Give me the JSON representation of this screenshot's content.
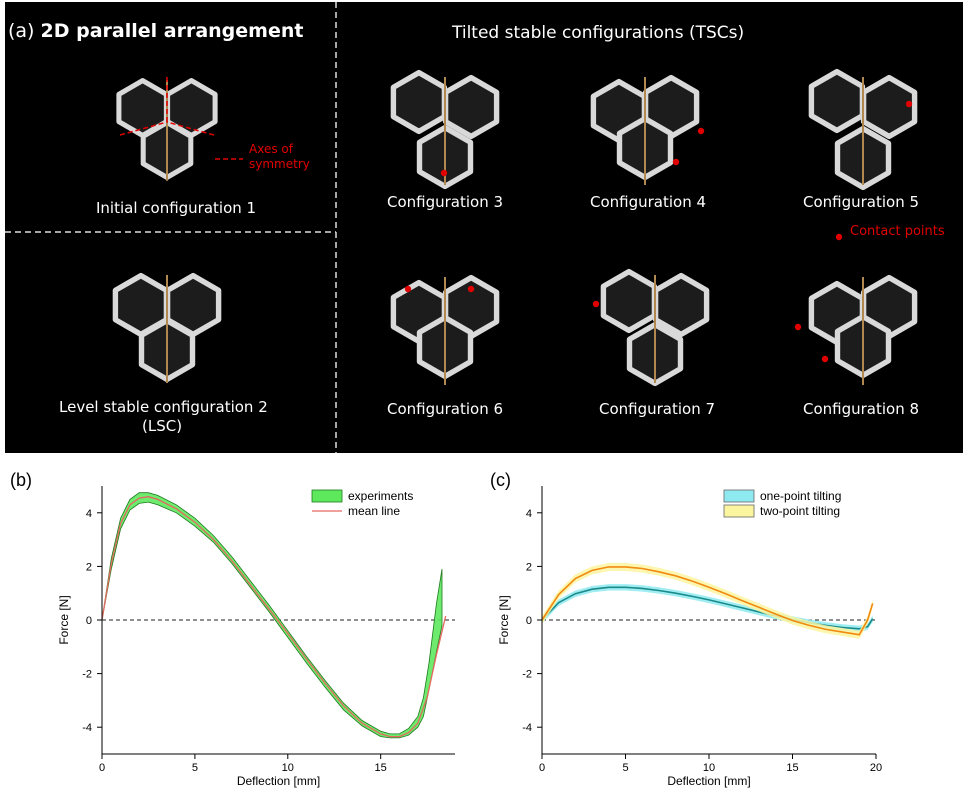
{
  "figure_a": {
    "panel_label": "(a)",
    "heading": "2D parallel arrangement",
    "right_heading": "Tilted stable configurations (TSCs)",
    "axes_label_line1": "Axes of",
    "axes_label_line2": "symmetry",
    "contact_label": "Contact points",
    "configs": [
      {
        "label": "Initial configuration 1"
      },
      {
        "label": "Level stable configuration 2",
        "label2": "(LSC)"
      },
      {
        "label": "Configuration 3"
      },
      {
        "label": "Configuration 4"
      },
      {
        "label": "Configuration 5"
      },
      {
        "label": "Configuration 6"
      },
      {
        "label": "Configuration 7"
      },
      {
        "label": "Configuration 8"
      }
    ],
    "colors": {
      "background": "#000000",
      "frame": "#d9d9d9",
      "accent": "#e10000"
    }
  },
  "chart_data": [
    {
      "panel_label": "(b)",
      "type": "line",
      "xlabel": "Deflection [mm]",
      "ylabel": "Force [N]",
      "xlim": [
        0,
        19
      ],
      "ylim": [
        -5,
        5
      ],
      "x_ticks": [
        "0",
        "5",
        "10",
        "15"
      ],
      "y_ticks": [
        "4",
        "2",
        "0",
        "-2",
        "-4"
      ],
      "series": [
        {
          "name": "experiments",
          "kind": "band",
          "color": "#5ee85e",
          "x": [
            0,
            0.5,
            1,
            1.5,
            2,
            2.5,
            3,
            4,
            5,
            6,
            7,
            8,
            9,
            10,
            11,
            12,
            13,
            14,
            15,
            15.5,
            16,
            16.5,
            17,
            17.3,
            17.6,
            18,
            18.3
          ],
          "upper": [
            0,
            2.3,
            3.8,
            4.5,
            4.75,
            4.75,
            4.65,
            4.3,
            3.8,
            3.15,
            2.35,
            1.45,
            0.55,
            -0.4,
            -1.35,
            -2.25,
            -3.1,
            -3.75,
            -4.15,
            -4.25,
            -4.25,
            -4.05,
            -3.6,
            -2.9,
            -1.6,
            0.6,
            1.9
          ],
          "lower": [
            0,
            1.9,
            3.4,
            4.1,
            4.35,
            4.4,
            4.3,
            4.0,
            3.5,
            2.9,
            2.1,
            1.2,
            0.3,
            -0.65,
            -1.6,
            -2.5,
            -3.35,
            -3.95,
            -4.35,
            -4.4,
            -4.4,
            -4.3,
            -4.0,
            -3.6,
            -2.6,
            -1.2,
            -0.2
          ]
        },
        {
          "name": "mean line",
          "kind": "line",
          "color": "#e46a5f",
          "x": [
            0,
            0.5,
            1,
            1.5,
            2,
            2.5,
            3,
            4,
            5,
            6,
            7,
            8,
            9,
            10,
            11,
            12,
            13,
            14,
            15,
            15.5,
            16,
            16.5,
            17,
            17.5,
            18,
            18.5
          ],
          "y": [
            0,
            2.1,
            3.6,
            4.3,
            4.55,
            4.6,
            4.5,
            4.15,
            3.65,
            3.0,
            2.2,
            1.3,
            0.4,
            -0.5,
            -1.45,
            -2.35,
            -3.2,
            -3.85,
            -4.25,
            -4.35,
            -4.35,
            -4.2,
            -3.85,
            -2.9,
            -1.3,
            0.15
          ]
        }
      ],
      "reference_line": 0,
      "legend_position": "top-right"
    },
    {
      "panel_label": "(c)",
      "type": "line",
      "xlabel": "Deflection [mm]",
      "ylabel": "Force [N]",
      "xlim": [
        0,
        20
      ],
      "ylim": [
        -5,
        5
      ],
      "x_ticks": [
        "0",
        "5",
        "10",
        "15",
        "20"
      ],
      "y_ticks": [
        "4",
        "2",
        "0",
        "-2",
        "-4"
      ],
      "series": [
        {
          "name": "one-point tilting",
          "kind": "band+line",
          "color": "#8eeaf0",
          "line_color": "#1a8a8a",
          "x": [
            0,
            1,
            2,
            3,
            4,
            5,
            6,
            7,
            8,
            9,
            10,
            11,
            12,
            13,
            14,
            15,
            16,
            17,
            18,
            19,
            19.5,
            19.8
          ],
          "y": [
            0,
            0.65,
            0.98,
            1.15,
            1.22,
            1.22,
            1.18,
            1.1,
            1.0,
            0.88,
            0.75,
            0.6,
            0.45,
            0.3,
            0.15,
            0.02,
            -0.1,
            -0.2,
            -0.28,
            -0.33,
            -0.25,
            0.05
          ],
          "spread": 0.12
        },
        {
          "name": "two-point tilting",
          "kind": "band+line",
          "color": "#fbf5a0",
          "line_color": "#f08a10",
          "x": [
            0,
            1,
            2,
            3,
            4,
            5,
            6,
            7,
            8,
            9,
            10,
            11,
            12,
            13,
            14,
            15,
            16,
            17,
            18,
            19,
            19.5,
            19.8
          ],
          "y": [
            0,
            0.95,
            1.55,
            1.85,
            1.98,
            1.98,
            1.92,
            1.8,
            1.65,
            1.45,
            1.22,
            0.98,
            0.72,
            0.47,
            0.22,
            -0.02,
            -0.2,
            -0.35,
            -0.45,
            -0.55,
            0.0,
            0.62
          ],
          "spread": 0.15
        }
      ],
      "reference_line": 0,
      "legend_position": "top-right"
    }
  ]
}
